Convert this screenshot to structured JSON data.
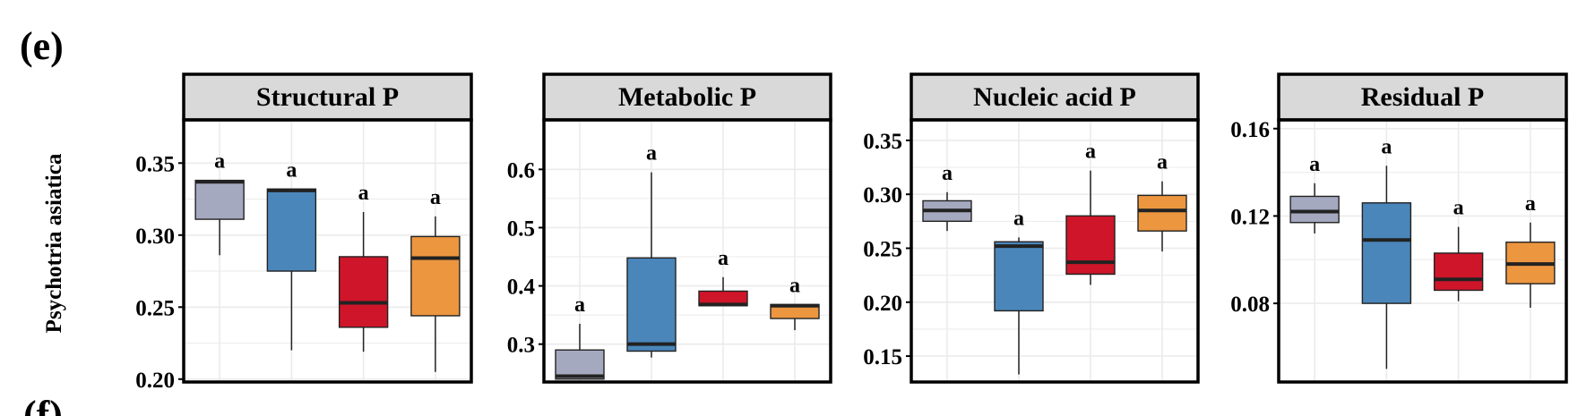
{
  "panel_letters": [
    "(e)",
    "(f)"
  ],
  "row_label": "Psychotria asiatica",
  "colors": {
    "group1": "#a4a9bf",
    "group2": "#4a86ba",
    "group3": "#cf1529",
    "group4": "#ec9640",
    "strip_bg": "#d9d9d9",
    "grid": "#ebebeb"
  },
  "chart_data": [
    {
      "type": "box",
      "title": "Structural P",
      "ylim": [
        0.198,
        0.38
      ],
      "yticks": [
        0.2,
        0.25,
        0.3,
        0.35
      ],
      "ytick_labels": [
        "0.20",
        "0.25",
        "0.30",
        "0.35"
      ],
      "boxes": [
        {
          "whisker_low": 0.286,
          "q1": 0.311,
          "median": 0.337,
          "q3": 0.338,
          "whisker_high": 0.338,
          "label": "a"
        },
        {
          "whisker_low": 0.22,
          "q1": 0.275,
          "median": 0.331,
          "q3": 0.332,
          "whisker_high": 0.332,
          "label": "a"
        },
        {
          "whisker_low": 0.219,
          "q1": 0.236,
          "median": 0.253,
          "q3": 0.285,
          "whisker_high": 0.316,
          "label": "a"
        },
        {
          "whisker_low": 0.205,
          "q1": 0.244,
          "median": 0.284,
          "q3": 0.299,
          "whisker_high": 0.313,
          "label": "a"
        }
      ]
    },
    {
      "type": "box",
      "title": "Metabolic P",
      "ylim": [
        0.235,
        0.685
      ],
      "yticks": [
        0.3,
        0.4,
        0.5,
        0.6
      ],
      "ytick_labels": [
        "0.3",
        "0.4",
        "0.5",
        "0.6"
      ],
      "boxes": [
        {
          "whisker_low": 0.24,
          "q1": 0.24,
          "median": 0.245,
          "q3": 0.29,
          "whisker_high": 0.335,
          "label": "a"
        },
        {
          "whisker_low": 0.277,
          "q1": 0.288,
          "median": 0.3,
          "q3": 0.448,
          "whisker_high": 0.595,
          "label": "a"
        },
        {
          "whisker_low": 0.366,
          "q1": 0.366,
          "median": 0.368,
          "q3": 0.391,
          "whisker_high": 0.415,
          "label": "a"
        },
        {
          "whisker_low": 0.324,
          "q1": 0.344,
          "median": 0.366,
          "q3": 0.368,
          "whisker_high": 0.368,
          "label": "a"
        }
      ]
    },
    {
      "type": "box",
      "title": "Nucleic acid P",
      "ylim": [
        0.126,
        0.369
      ],
      "yticks": [
        0.15,
        0.2,
        0.25,
        0.3,
        0.35
      ],
      "ytick_labels": [
        "0.15",
        "0.20",
        "0.25",
        "0.30",
        "0.35"
      ],
      "boxes": [
        {
          "whisker_low": 0.266,
          "q1": 0.275,
          "median": 0.285,
          "q3": 0.294,
          "whisker_high": 0.302,
          "label": "a"
        },
        {
          "whisker_low": 0.133,
          "q1": 0.192,
          "median": 0.252,
          "q3": 0.256,
          "whisker_high": 0.26,
          "label": "a"
        },
        {
          "whisker_low": 0.216,
          "q1": 0.226,
          "median": 0.237,
          "q3": 0.28,
          "whisker_high": 0.322,
          "label": "a"
        },
        {
          "whisker_low": 0.247,
          "q1": 0.266,
          "median": 0.285,
          "q3": 0.299,
          "whisker_high": 0.312,
          "label": "a"
        }
      ]
    },
    {
      "type": "box",
      "title": "Residual P",
      "ylim": [
        0.044,
        0.164
      ],
      "yticks": [
        0.08,
        0.12,
        0.16
      ],
      "ytick_labels": [
        "0.08",
        "0.12",
        "0.16"
      ],
      "boxes": [
        {
          "whisker_low": 0.112,
          "q1": 0.117,
          "median": 0.122,
          "q3": 0.129,
          "whisker_high": 0.135,
          "label": "a"
        },
        {
          "whisker_low": 0.05,
          "q1": 0.08,
          "median": 0.109,
          "q3": 0.126,
          "whisker_high": 0.143,
          "label": "a"
        },
        {
          "whisker_low": 0.081,
          "q1": 0.086,
          "median": 0.091,
          "q3": 0.103,
          "whisker_high": 0.115,
          "label": "a"
        },
        {
          "whisker_low": 0.078,
          "q1": 0.089,
          "median": 0.098,
          "q3": 0.108,
          "whisker_high": 0.117,
          "label": "a"
        }
      ]
    }
  ]
}
